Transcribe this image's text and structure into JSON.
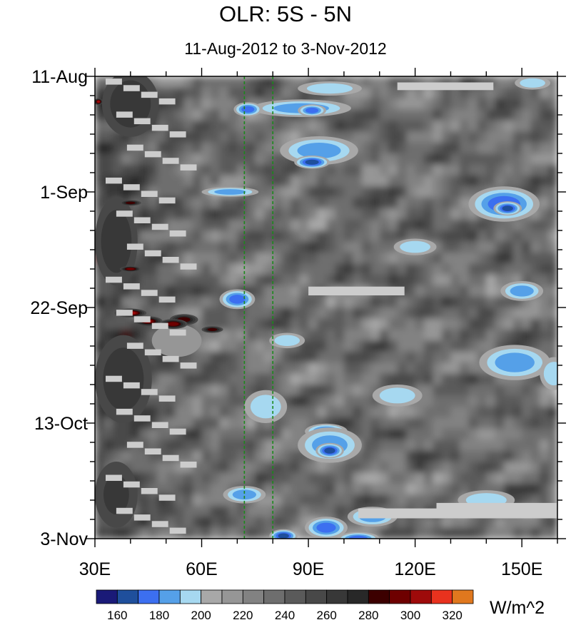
{
  "chart_data": {
    "type": "heatmap",
    "title": "OLR: 5S - 5N",
    "subtitle": "11-Aug-2012 to 3-Nov-2012",
    "x_range": [
      30,
      160
    ],
    "x_ticks": [
      {
        "value": 30,
        "label": "30E"
      },
      {
        "value": 60,
        "label": "60E"
      },
      {
        "value": 90,
        "label": "90E"
      },
      {
        "value": 120,
        "label": "120E"
      },
      {
        "value": 150,
        "label": "150E"
      }
    ],
    "y_range_days": [
      0,
      84
    ],
    "y_ticks": [
      {
        "value": 0,
        "label": "11-Aug"
      },
      {
        "value": 21,
        "label": "1-Sep"
      },
      {
        "value": 42,
        "label": "22-Sep"
      },
      {
        "value": 63,
        "label": "13-Oct"
      },
      {
        "value": 84,
        "label": "3-Nov"
      }
    ],
    "reference_lines_lon": [
      72,
      80
    ],
    "reference_line_color": "#1a8a1a",
    "colorbar": {
      "unit_label": "W/m^2",
      "levels": [
        160,
        170,
        180,
        190,
        200,
        210,
        220,
        230,
        240,
        250,
        260,
        270,
        280,
        290,
        300,
        310,
        320
      ],
      "tick_labels": [
        "160",
        "180",
        "200",
        "220",
        "240",
        "260",
        "280",
        "300",
        "320"
      ],
      "colors": [
        "#1a1a78",
        "#1f4f9c",
        "#3c6ff0",
        "#55a0e8",
        "#a6d8f0",
        "#a8a8a8",
        "#969696",
        "#828282",
        "#6e6e6e",
        "#5a5a5a",
        "#484848",
        "#383838",
        "#282828",
        "#3c0000",
        "#6e0000",
        "#9e0a0a",
        "#e8321e",
        "#e0781e"
      ]
    },
    "missing_color": "#cccccc",
    "blobs": [
      {
        "lon": 96,
        "day": 2.2,
        "rl": 9,
        "rd": 1.3,
        "v": 196
      },
      {
        "lon": 88,
        "day": 5.8,
        "rl": 14,
        "rd": 1.6,
        "v": 183
      },
      {
        "lon": 73,
        "day": 6.0,
        "rl": 4,
        "rd": 1.3,
        "v": 175
      },
      {
        "lon": 91,
        "day": 6.2,
        "rl": 4,
        "rd": 1.1,
        "v": 172
      },
      {
        "lon": 93,
        "day": 13.5,
        "rl": 11,
        "rd": 2.6,
        "v": 180
      },
      {
        "lon": 91,
        "day": 15.6,
        "rl": 5,
        "rd": 1.2,
        "v": 168
      },
      {
        "lon": 68,
        "day": 21.0,
        "rl": 8,
        "rd": 0.9,
        "v": 182
      },
      {
        "lon": 145,
        "day": 23.2,
        "rl": 10,
        "rd": 3.2,
        "v": 173
      },
      {
        "lon": 146,
        "day": 24.0,
        "rl": 4,
        "rd": 1.3,
        "v": 160
      },
      {
        "lon": 70,
        "day": 40.5,
        "rl": 5,
        "rd": 1.8,
        "v": 178
      },
      {
        "lon": 150,
        "day": 39.0,
        "rl": 6,
        "rd": 1.8,
        "v": 186
      },
      {
        "lon": 148,
        "day": 52.0,
        "rl": 10,
        "rd": 3.2,
        "v": 185
      },
      {
        "lon": 159,
        "day": 54.0,
        "rl": 4,
        "rd": 3.0,
        "v": 190
      },
      {
        "lon": 78,
        "day": 60.0,
        "rl": 6,
        "rd": 3.0,
        "v": 196
      },
      {
        "lon": 95,
        "day": 64.5,
        "rl": 6,
        "rd": 1.4,
        "v": 178
      },
      {
        "lon": 96,
        "day": 67.0,
        "rl": 9,
        "rd": 3.2,
        "v": 180
      },
      {
        "lon": 96,
        "day": 68.0,
        "rl": 4,
        "rd": 1.4,
        "v": 166
      },
      {
        "lon": 72,
        "day": 76.0,
        "rl": 6,
        "rd": 1.6,
        "v": 183
      },
      {
        "lon": 95,
        "day": 82.0,
        "rl": 6,
        "rd": 2.0,
        "v": 176
      },
      {
        "lon": 108,
        "day": 80.0,
        "rl": 7,
        "rd": 1.8,
        "v": 185
      },
      {
        "lon": 104,
        "day": 84.0,
        "rl": 6,
        "rd": 1.2,
        "v": 170
      },
      {
        "lon": 83,
        "day": 83.5,
        "rl": 4,
        "rd": 1.2,
        "v": 166
      },
      {
        "lon": 140,
        "day": 77.0,
        "rl": 8,
        "rd": 1.8,
        "v": 192
      },
      {
        "lon": 153,
        "day": 1.2,
        "rl": 5,
        "rd": 1.2,
        "v": 192
      },
      {
        "lon": 115,
        "day": 58.0,
        "rl": 7,
        "rd": 2.0,
        "v": 196
      },
      {
        "lon": 120,
        "day": 31.0,
        "rl": 6,
        "rd": 1.5,
        "v": 197
      },
      {
        "lon": 84,
        "day": 48.0,
        "rl": 5,
        "rd": 1.4,
        "v": 195
      },
      {
        "lon": 53,
        "day": 48.0,
        "rl": 7,
        "rd": 3.0,
        "v": 214
      },
      {
        "lon": 40,
        "day": 5.0,
        "rl": 8,
        "rd": 6.0,
        "v": 262
      },
      {
        "lon": 36,
        "day": 30.0,
        "rl": 6,
        "rd": 8.0,
        "v": 264
      },
      {
        "lon": 38,
        "day": 55.0,
        "rl": 8,
        "rd": 8.0,
        "v": 262
      },
      {
        "lon": 36,
        "day": 76.0,
        "rl": 6,
        "rd": 6.0,
        "v": 260
      },
      {
        "lon": 55,
        "day": 44.2,
        "rl": 4,
        "rd": 1.0,
        "v": 286
      },
      {
        "lon": 63,
        "day": 46.0,
        "rl": 3,
        "rd": 0.6,
        "v": 288
      },
      {
        "lon": 40,
        "day": 43.0,
        "rl": 4.5,
        "rd": 0.8,
        "v": 305
      },
      {
        "lon": 45,
        "day": 44.5,
        "rl": 4,
        "rd": 0.9,
        "v": 300
      },
      {
        "lon": 52,
        "day": 45.0,
        "rl": 4,
        "rd": 0.9,
        "v": 296
      },
      {
        "lon": 31,
        "day": 4.6,
        "rl": 1.2,
        "rd": 0.6,
        "v": 302
      },
      {
        "lon": 40,
        "day": 23.0,
        "rl": 3,
        "rd": 0.5,
        "v": 286
      },
      {
        "lon": 40,
        "day": 35.0,
        "rl": 3,
        "rd": 0.5,
        "v": 292
      }
    ],
    "missing_segments": [
      {
        "lon0": 115,
        "lon1": 142,
        "day0": 1.1,
        "day1": 2.5
      },
      {
        "lon0": 90,
        "lon1": 117,
        "day0": 38.2,
        "day1": 39.8
      },
      {
        "lon0": 104,
        "lon1": 160,
        "day0": 78.5,
        "day1": 80.3
      },
      {
        "lon0": 126,
        "lon1": 160,
        "day0": 77.5,
        "day1": 79.0
      }
    ]
  }
}
